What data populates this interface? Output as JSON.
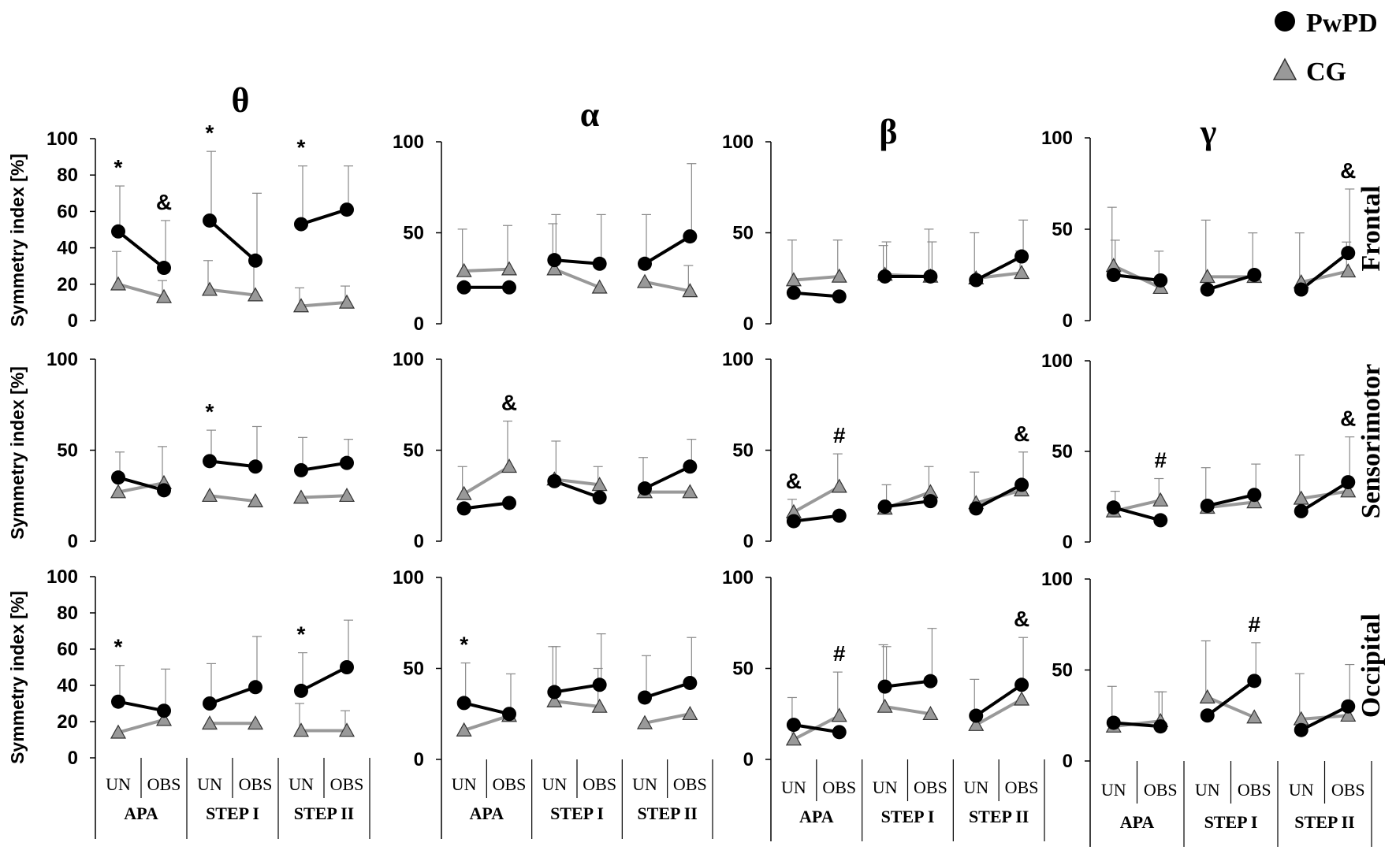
{
  "legend": {
    "pwpd_label": "PwPD",
    "cg_label": "CG"
  },
  "colors": {
    "pwpd": "#000000",
    "cg": "#999999",
    "axis": "#000000",
    "errorbar": "#888888"
  },
  "y_axis_label": "Symmetry index [%]",
  "bands": [
    "θ",
    "α",
    "β",
    "γ"
  ],
  "regions": [
    "Frontal",
    "Sensorimotor",
    "Occipital"
  ],
  "conditions": [
    "UN",
    "OBS"
  ],
  "phases": [
    "APA",
    "STEP I",
    "STEP II"
  ],
  "chart_data": [
    {
      "type": "line",
      "band": "θ",
      "region": "Frontal",
      "ylim": [
        0,
        100
      ],
      "yticks": [
        0,
        20,
        40,
        60,
        80,
        100
      ],
      "series": [
        {
          "name": "PwPD",
          "values": [
            49,
            29,
            55,
            33,
            53,
            61
          ],
          "errors": [
            25,
            26,
            38,
            37,
            32,
            24
          ]
        },
        {
          "name": "CG",
          "values": [
            20,
            13,
            17,
            14,
            8,
            10
          ],
          "errors": [
            18,
            9,
            16,
            20,
            10,
            9
          ]
        }
      ],
      "annotations": [
        {
          "text": "*",
          "point": 0
        },
        {
          "text": "&",
          "point": 1
        },
        {
          "text": "*",
          "point": 2
        },
        {
          "text": "*",
          "point": 4
        }
      ]
    },
    {
      "type": "line",
      "band": "α",
      "region": "Frontal",
      "ylim": [
        0,
        100
      ],
      "yticks": [
        0,
        50,
        100
      ],
      "series": [
        {
          "name": "PwPD",
          "values": [
            20,
            20,
            35,
            33,
            33,
            48
          ],
          "errors": [
            0,
            0,
            25,
            27,
            27,
            40
          ]
        },
        {
          "name": "CG",
          "values": [
            29,
            30,
            30,
            20,
            23,
            18
          ],
          "errors": [
            23,
            24,
            25,
            0,
            0,
            14
          ]
        }
      ],
      "annotations": []
    },
    {
      "type": "line",
      "band": "β",
      "region": "Frontal",
      "ylim": [
        0,
        100
      ],
      "yticks": [
        0,
        50,
        100
      ],
      "series": [
        {
          "name": "PwPD",
          "values": [
            17,
            15,
            26,
            26,
            24,
            37
          ],
          "errors": [
            0,
            0,
            19,
            19,
            0,
            20
          ]
        },
        {
          "name": "CG",
          "values": [
            24,
            26,
            27,
            26,
            25,
            28
          ],
          "errors": [
            22,
            20,
            16,
            26,
            25,
            12
          ]
        }
      ],
      "annotations": []
    },
    {
      "type": "line",
      "band": "γ",
      "region": "Frontal",
      "ylim": [
        0,
        100
      ],
      "yticks": [
        0,
        50,
        100
      ],
      "series": [
        {
          "name": "PwPD",
          "values": [
            25,
            22,
            17,
            25,
            17,
            37
          ],
          "errors": [
            19,
            0,
            0,
            0,
            0,
            35
          ]
        },
        {
          "name": "CG",
          "values": [
            30,
            18,
            24,
            24,
            21,
            27
          ],
          "errors": [
            32,
            20,
            31,
            24,
            27,
            16
          ]
        }
      ],
      "annotations": [
        {
          "text": "&",
          "point": 5
        }
      ]
    },
    {
      "type": "line",
      "band": "θ",
      "region": "Sensorimotor",
      "ylim": [
        0,
        100
      ],
      "yticks": [
        0,
        50,
        100
      ],
      "series": [
        {
          "name": "PwPD",
          "values": [
            35,
            28,
            44,
            41,
            39,
            43
          ],
          "errors": [
            14,
            0,
            17,
            22,
            18,
            13
          ]
        },
        {
          "name": "CG",
          "values": [
            27,
            32,
            25,
            22,
            24,
            25
          ],
          "errors": [
            0,
            20,
            0,
            0,
            0,
            0
          ]
        }
      ],
      "annotations": [
        {
          "text": "*",
          "point": 2
        }
      ]
    },
    {
      "type": "line",
      "band": "α",
      "region": "Sensorimotor",
      "ylim": [
        0,
        100
      ],
      "yticks": [
        0,
        50,
        100
      ],
      "series": [
        {
          "name": "PwPD",
          "values": [
            18,
            21,
            33,
            24,
            29,
            41
          ],
          "errors": [
            0,
            0,
            22,
            0,
            0,
            15
          ]
        },
        {
          "name": "CG",
          "values": [
            26,
            41,
            34,
            31,
            27,
            27
          ],
          "errors": [
            15,
            25,
            0,
            10,
            19,
            0
          ]
        }
      ],
      "annotations": [
        {
          "text": "&",
          "point": 1
        }
      ]
    },
    {
      "type": "line",
      "band": "β",
      "region": "Sensorimotor",
      "ylim": [
        0,
        100
      ],
      "yticks": [
        0,
        50,
        100
      ],
      "series": [
        {
          "name": "PwPD",
          "values": [
            11,
            14,
            19,
            22,
            18,
            31
          ],
          "errors": [
            0,
            0,
            12,
            0,
            0,
            18
          ]
        },
        {
          "name": "CG",
          "values": [
            16,
            30,
            18,
            27,
            21,
            28
          ],
          "errors": [
            7,
            18,
            0,
            14,
            17,
            0
          ]
        }
      ],
      "annotations": [
        {
          "text": "&",
          "point": 0
        },
        {
          "text": "#",
          "point": 1
        },
        {
          "text": "&",
          "point": 5
        }
      ]
    },
    {
      "type": "line",
      "band": "γ",
      "region": "Sensorimotor",
      "ylim": [
        0,
        100
      ],
      "yticks": [
        0,
        50,
        100
      ],
      "series": [
        {
          "name": "PwPD",
          "values": [
            19,
            12,
            20,
            26,
            17,
            33
          ],
          "errors": [
            9,
            0,
            0,
            17,
            0,
            25
          ]
        },
        {
          "name": "CG",
          "values": [
            17,
            23,
            19,
            22,
            24,
            28
          ],
          "errors": [
            0,
            12,
            22,
            0,
            24,
            0
          ]
        }
      ],
      "annotations": [
        {
          "text": "#",
          "point": 1
        },
        {
          "text": "&",
          "point": 5
        }
      ]
    },
    {
      "type": "line",
      "band": "θ",
      "region": "Occipital",
      "ylim": [
        0,
        100
      ],
      "yticks": [
        0,
        20,
        40,
        60,
        80,
        100
      ],
      "series": [
        {
          "name": "PwPD",
          "values": [
            31,
            26,
            30,
            39,
            37,
            50
          ],
          "errors": [
            20,
            23,
            22,
            28,
            21,
            26
          ]
        },
        {
          "name": "CG",
          "values": [
            14,
            21,
            19,
            19,
            15,
            15
          ],
          "errors": [
            0,
            0,
            0,
            0,
            15,
            11
          ]
        }
      ],
      "annotations": [
        {
          "text": "*",
          "point": 0
        },
        {
          "text": "*",
          "point": 4
        }
      ]
    },
    {
      "type": "line",
      "band": "α",
      "region": "Occipital",
      "ylim": [
        0,
        100
      ],
      "yticks": [
        0,
        50,
        100
      ],
      "series": [
        {
          "name": "PwPD",
          "values": [
            31,
            25,
            37,
            41,
            34,
            42
          ],
          "errors": [
            22,
            22,
            25,
            28,
            23,
            25
          ]
        },
        {
          "name": "CG",
          "values": [
            16,
            24,
            32,
            29,
            20,
            25
          ],
          "errors": [
            0,
            0,
            30,
            21,
            0,
            0
          ]
        }
      ],
      "annotations": [
        {
          "text": "*",
          "point": 0
        }
      ]
    },
    {
      "type": "line",
      "band": "β",
      "region": "Occipital",
      "ylim": [
        0,
        100
      ],
      "yticks": [
        0,
        50,
        100
      ],
      "series": [
        {
          "name": "PwPD",
          "values": [
            19,
            15,
            40,
            43,
            24,
            41
          ],
          "errors": [
            0,
            0,
            22,
            29,
            0,
            26
          ]
        },
        {
          "name": "CG",
          "values": [
            11,
            24,
            29,
            25,
            19,
            33
          ],
          "errors": [
            23,
            24,
            34,
            0,
            25,
            0
          ]
        }
      ],
      "annotations": [
        {
          "text": "#",
          "point": 1
        },
        {
          "text": "&",
          "point": 5
        }
      ]
    },
    {
      "type": "line",
      "band": "γ",
      "region": "Occipital",
      "ylim": [
        0,
        100
      ],
      "yticks": [
        0,
        50,
        100
      ],
      "series": [
        {
          "name": "PwPD",
          "values": [
            21,
            19,
            25,
            44,
            17,
            30
          ],
          "errors": [
            0,
            19,
            0,
            21,
            0,
            23
          ]
        },
        {
          "name": "CG",
          "values": [
            19,
            22,
            35,
            24,
            23,
            25
          ],
          "errors": [
            22,
            16,
            31,
            0,
            25,
            0
          ]
        }
      ],
      "annotations": [
        {
          "text": "#",
          "point": 3
        }
      ]
    }
  ]
}
